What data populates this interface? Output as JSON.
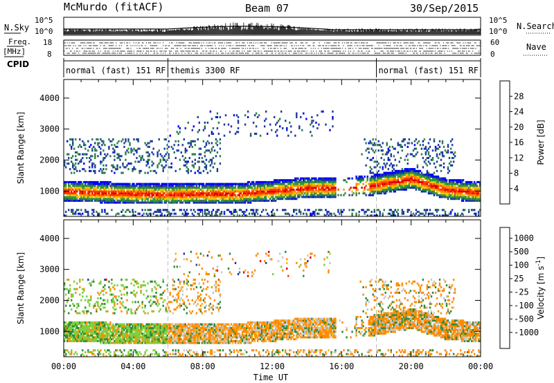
{
  "header": {
    "station": "McMurdo (fitACF)",
    "beam": "Beam 07",
    "date": "30/Sep/2015"
  },
  "left_labels": {
    "nsky": "N.Sky",
    "freq": "Freq.",
    "freq_unit": "[MHz]",
    "cpid": "CPID"
  },
  "right_labels": {
    "nsearch": "N.Search",
    "nave": "Nave"
  },
  "tick_labels": {
    "noise_top": "10^5",
    "noise_bottom": "10^0",
    "freq_top": "18",
    "freq_bottom": "8",
    "nave_top": "60",
    "nave_bottom": "0"
  },
  "colors": {
    "power": [
      "#0000ff",
      "#1e3ca0",
      "#2e7d4f",
      "#2e9e3a",
      "#f0c800",
      "#ff8c00",
      "#ff3c00",
      "#e00000"
    ],
    "velocity": [
      "#e00000",
      "#ff3c00",
      "#ff8c00",
      "#ffb020",
      "#c8c8c8",
      "#7fd040",
      "#2e8b3a",
      "#1e50a0",
      "#1a2ec8"
    ]
  },
  "chart_data": [
    {
      "type": "heatmap",
      "title": "",
      "xlabel": "Time UT",
      "ylabel": "Slant Range [km]",
      "xlim": [
        "00:00",
        "24:00"
      ],
      "ylim": [
        180,
        4600
      ],
      "x_ticks": [
        "00:00",
        "04:00",
        "08:00",
        "12:00",
        "16:00",
        "20:00",
        "00:00"
      ],
      "y_ticks": [
        "1000",
        "2000",
        "3000",
        "4000"
      ],
      "colorbar": {
        "label": "Power [dB]",
        "range": [
          0,
          32
        ],
        "ticks": [
          "4",
          "8",
          "12",
          "16",
          "20",
          "24",
          "28"
        ]
      },
      "cpid_segments": [
        {
          "start": "00:00",
          "end": "06:00",
          "label": "normal (fast) 151 RF"
        },
        {
          "start": "06:00",
          "end": "18:00",
          "label": "themis 3300 RF"
        },
        {
          "start": "18:00",
          "end": "24:00",
          "label": "normal (fast) 151 RF"
        }
      ],
      "main_band": [
        {
          "t": 0,
          "range": 900
        },
        {
          "t": 2,
          "range": 850
        },
        {
          "t": 4,
          "range": 820
        },
        {
          "t": 6,
          "range": 800
        },
        {
          "t": 8,
          "range": 820
        },
        {
          "t": 10,
          "range": 820
        },
        {
          "t": 12,
          "range": 900
        },
        {
          "t": 14,
          "range": 1000
        },
        {
          "t": 15.5,
          "range": 1000
        },
        {
          "t": 17.5,
          "range": 1050
        },
        {
          "t": 20,
          "range": 1300
        },
        {
          "t": 22,
          "range": 950
        },
        {
          "t": 24,
          "range": 850
        }
      ]
    },
    {
      "type": "heatmap",
      "title": "",
      "xlabel": "Time UT",
      "ylabel": "Slant Range [km]",
      "xlim": [
        "00:00",
        "24:00"
      ],
      "ylim": [
        180,
        4600
      ],
      "x_ticks": [
        "00:00",
        "04:00",
        "08:00",
        "12:00",
        "16:00",
        "20:00",
        "00:00"
      ],
      "y_ticks": [
        "1000",
        "2000",
        "3000",
        "4000"
      ],
      "colorbar": {
        "label": "Velocity [m s-1]",
        "ticks": [
          "1000",
          "500",
          "100",
          "25",
          "-25",
          "-100",
          "-500",
          "-1000"
        ],
        "unit_prefix": "Velocity  [m s",
        "unit_exponent": "-1",
        "unit_suffix": "]"
      }
    }
  ]
}
